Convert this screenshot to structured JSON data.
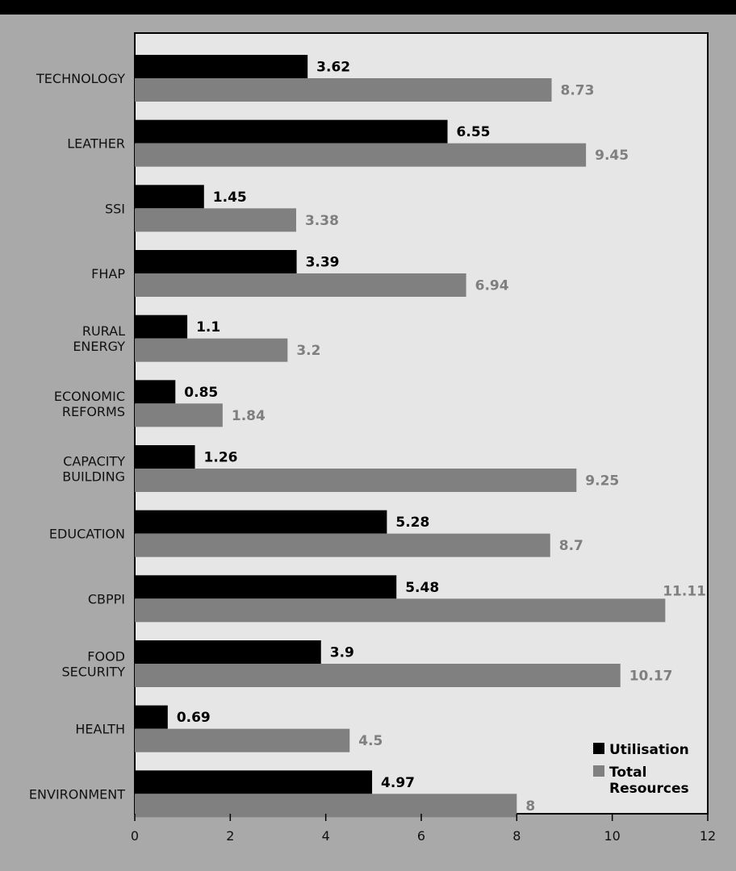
{
  "chart_data": {
    "type": "bar",
    "orientation": "horizontal",
    "categories": [
      [
        "TECHNOLOGY"
      ],
      [
        "LEATHER"
      ],
      [
        "SSI"
      ],
      [
        "FHAP"
      ],
      [
        "RURAL",
        "ENERGY"
      ],
      [
        "ECONOMIC",
        "REFORMS"
      ],
      [
        "CAPACITY",
        "BUILDING"
      ],
      [
        "EDUCATION"
      ],
      [
        "CBPPI"
      ],
      [
        "FOOD",
        "SECURITY"
      ],
      [
        "HEALTH"
      ],
      [
        "ENVIRONMENT"
      ]
    ],
    "series": [
      {
        "name": "Utilisation",
        "color": "#000000",
        "label_color": "#000000",
        "values": [
          3.62,
          6.55,
          1.45,
          3.39,
          1.1,
          0.85,
          1.26,
          5.28,
          5.48,
          3.9,
          0.69,
          4.97
        ],
        "labels": [
          "3.62",
          "6.55",
          "1.45",
          "3.39",
          "1.1",
          "0.85",
          "1.26",
          "5.28",
          "5.48",
          "3.9",
          "0.69",
          "4.97"
        ]
      },
      {
        "name": "Total Resources",
        "name_lines": [
          "Total",
          "Resources"
        ],
        "color": "#808080",
        "label_color": "#7f7f7f",
        "values": [
          8.73,
          9.45,
          3.38,
          6.94,
          3.2,
          1.84,
          9.25,
          8.7,
          11.11,
          10.17,
          4.5,
          8
        ],
        "labels": [
          "8.73",
          "9.45",
          "3.38",
          "6.94",
          "3.2",
          "1.84",
          "9.25",
          "8.7",
          "11.11",
          "10.17",
          "4.5",
          "8"
        ]
      }
    ],
    "xlim": [
      0,
      12
    ],
    "xticks": [
      "0",
      "2",
      "4",
      "6",
      "8",
      "10",
      "12"
    ],
    "grid": false,
    "legend_position": "bottom-right",
    "plot_background": "#e6e6e6",
    "page_background": "#a9a9a9"
  }
}
